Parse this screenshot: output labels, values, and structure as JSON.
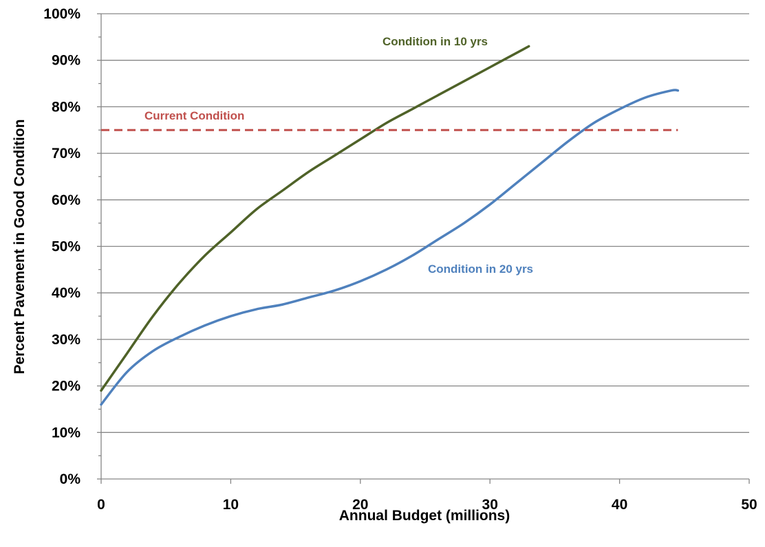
{
  "chart_data": {
    "type": "line",
    "title": "",
    "xlabel": "Annual Budget (millions)",
    "ylabel": "Percent Pavement in Good Condition",
    "xlim": [
      0,
      50
    ],
    "ylim": [
      0,
      100
    ],
    "x_ticks": [
      "0",
      "10",
      "20",
      "30",
      "40",
      "50"
    ],
    "y_ticks": [
      "0%",
      "10%",
      "20%",
      "30%",
      "40%",
      "50%",
      "60%",
      "70%",
      "80%",
      "90%",
      "100%"
    ],
    "grid": "horizontal",
    "series": [
      {
        "name": "Condition in 10 yrs",
        "color": "#4f6228",
        "x": [
          0,
          2,
          4,
          6,
          8,
          10,
          12,
          14,
          16,
          18,
          20,
          22,
          24,
          26,
          28,
          30,
          32,
          33
        ],
        "y": [
          19,
          27,
          35,
          42,
          48,
          53,
          58,
          62,
          66,
          69.5,
          73,
          76.5,
          79.5,
          82.5,
          85.5,
          88.5,
          91.5,
          93
        ]
      },
      {
        "name": "Condition in 20 yrs",
        "color": "#4f81bd",
        "x": [
          0,
          2,
          4,
          6,
          8,
          10,
          12,
          14,
          16,
          18,
          20,
          22,
          24,
          26,
          28,
          30,
          32,
          34,
          36,
          38,
          40,
          42,
          44,
          44.5
        ],
        "y": [
          16,
          23,
          27.5,
          30.5,
          33,
          35,
          36.5,
          37.5,
          39,
          40.5,
          42.5,
          45,
          48,
          51.5,
          55,
          59,
          63.5,
          68,
          72.5,
          76.5,
          79.5,
          82,
          83.5,
          83.5
        ]
      },
      {
        "name": "Current Condition",
        "color": "#c0504d",
        "style": "dashed",
        "x": [
          0,
          44.5
        ],
        "y": [
          75,
          75
        ]
      }
    ],
    "labels": {
      "ten": "Condition in 10 yrs",
      "twenty": "Condition in 20 yrs",
      "current": "Current Condition"
    }
  }
}
